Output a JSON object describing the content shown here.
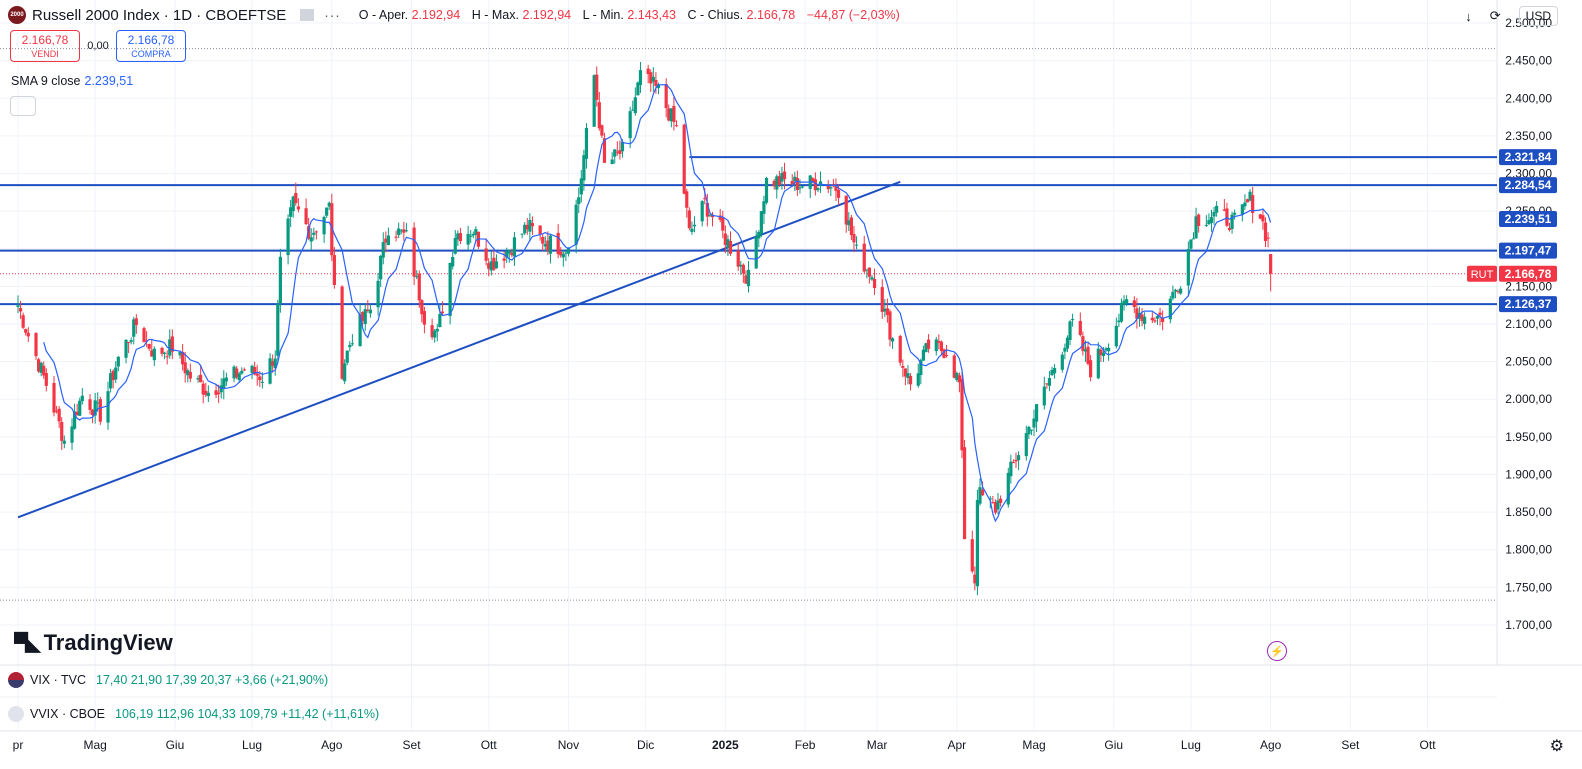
{
  "header": {
    "logo_text": "2000",
    "symbol": "Russell 2000 Index · 1D · CBOEFTSE",
    "open_label": "O - Aper.",
    "open_value": "2.192,94",
    "high_label": "H - Max.",
    "high_value": "2.192,94",
    "low_label": "L - Min.",
    "low_value": "2.143,43",
    "close_label": "C - Chius.",
    "close_value": "2.166,78",
    "change": "−44,87 (−2,03%)"
  },
  "trade": {
    "sell_price": "2.166,78",
    "sell_label": "VENDI",
    "spread": "0,00",
    "buy_price": "2.166,78",
    "buy_label": "COMPRA"
  },
  "indicator": {
    "name": "SMA 9 close",
    "value": "2.239,51"
  },
  "toolbar": {
    "currency": "USD"
  },
  "brand": "TradingView",
  "lower_panes": [
    {
      "name": "VIX · TVC",
      "values": "17,40  21,90  17,39  20,37  +3,66 (+21,90%)"
    },
    {
      "name": "VVIX · CBOE",
      "values": "106,19  112,96  104,33  109,79  +11,42 (+11,61%)"
    }
  ],
  "colors": {
    "up": "#089981",
    "down": "#f23645",
    "sma": "#2962ff",
    "levels": "#1e4fc2",
    "accent": "#2962ff"
  },
  "chart_data": {
    "type": "candlestick",
    "symbol": "RUT",
    "interval": "1D",
    "ylim": [
      1680,
      2520
    ],
    "y_ticks": [
      1700,
      1750,
      1800,
      1850,
      1900,
      1950,
      2000,
      2050,
      2100,
      2150,
      2200,
      2250,
      2300,
      2350,
      2400,
      2450,
      2500
    ],
    "y_tick_labels": [
      "1.700,00",
      "1.750,00",
      "1.800,00",
      "1.850,00",
      "1.900,00",
      "1.950,00",
      "2.000,00",
      "2.050,00",
      "2.100,00",
      "2.150,00",
      "2.200,00",
      "2.250,00",
      "2.300,00",
      "2.350,00",
      "2.400,00",
      "2.450,00",
      "2.500,00"
    ],
    "x_labels": [
      "pr",
      "Mag",
      "Giu",
      "Lug",
      "Ago",
      "Set",
      "Ott",
      "Nov",
      "Dic",
      "2025",
      "Feb",
      "Mar",
      "Apr",
      "Mag",
      "Giu",
      "Lug",
      "Ago",
      "Set",
      "Ott"
    ],
    "x_label_months": [
      "2024-04",
      "2024-05",
      "2024-06",
      "2024-07",
      "2024-08",
      "2024-09",
      "2024-10",
      "2024-11",
      "2024-12",
      "2025-01",
      "2025-02",
      "2025-03",
      "2025-04",
      "2025-05",
      "2025-06",
      "2025-07",
      "2025-08",
      "2025-09",
      "2025-10"
    ],
    "horizontal_levels": [
      {
        "value": 2321.84,
        "label": "2.321,84",
        "from_date": "2024-12-18"
      },
      {
        "value": 2284.54,
        "label": "2.284,54"
      },
      {
        "value": 2239.51,
        "label": "2.239,51",
        "kind": "sma"
      },
      {
        "value": 2197.47,
        "label": "2.197,47"
      },
      {
        "value": 2166.78,
        "label": "2.166,78",
        "kind": "last",
        "tag": "RUT"
      },
      {
        "value": 2126.37,
        "label": "2.126,37"
      }
    ],
    "dotted_levels": [
      2466,
      1733
    ],
    "trendline": {
      "from": [
        "2024-04-01",
        1843
      ],
      "to": [
        "2025-03-10",
        2289
      ]
    },
    "anchors": [
      [
        "2024-04-01",
        2125
      ],
      [
        "2024-04-05",
        2085
      ],
      [
        "2024-04-12",
        2020
      ],
      [
        "2024-04-19",
        1945
      ],
      [
        "2024-04-26",
        2005
      ],
      [
        "2024-05-03",
        1980
      ],
      [
        "2024-05-10",
        2055
      ],
      [
        "2024-05-17",
        2100
      ],
      [
        "2024-05-24",
        2060
      ],
      [
        "2024-05-31",
        2070
      ],
      [
        "2024-06-07",
        2030
      ],
      [
        "2024-06-14",
        2010
      ],
      [
        "2024-06-21",
        2025
      ],
      [
        "2024-06-28",
        2040
      ],
      [
        "2024-07-05",
        2030
      ],
      [
        "2024-07-10",
        2060
      ],
      [
        "2024-07-12",
        2180
      ],
      [
        "2024-07-17",
        2260
      ],
      [
        "2024-07-24",
        2220
      ],
      [
        "2024-07-31",
        2255
      ],
      [
        "2024-08-02",
        2140
      ],
      [
        "2024-08-05",
        2040
      ],
      [
        "2024-08-09",
        2085
      ],
      [
        "2024-08-16",
        2120
      ],
      [
        "2024-08-23",
        2230
      ],
      [
        "2024-08-30",
        2215
      ],
      [
        "2024-09-06",
        2110
      ],
      [
        "2024-09-11",
        2085
      ],
      [
        "2024-09-18",
        2220
      ],
      [
        "2024-09-25",
        2225
      ],
      [
        "2024-10-02",
        2180
      ],
      [
        "2024-10-09",
        2200
      ],
      [
        "2024-10-16",
        2230
      ],
      [
        "2024-10-23",
        2210
      ],
      [
        "2024-10-31",
        2200
      ],
      [
        "2024-11-05",
        2270
      ],
      [
        "2024-11-11",
        2430
      ],
      [
        "2024-11-15",
        2310
      ],
      [
        "2024-11-22",
        2330
      ],
      [
        "2024-11-29",
        2430
      ],
      [
        "2024-12-06",
        2410
      ],
      [
        "2024-12-13",
        2360
      ],
      [
        "2024-12-18",
        2220
      ],
      [
        "2024-12-24",
        2260
      ],
      [
        "2024-12-31",
        2220
      ],
      [
        "2025-01-10",
        2160
      ],
      [
        "2025-01-17",
        2290
      ],
      [
        "2025-01-24",
        2290
      ],
      [
        "2025-01-31",
        2285
      ],
      [
        "2025-02-07",
        2290
      ],
      [
        "2025-02-14",
        2280
      ],
      [
        "2025-02-21",
        2195
      ],
      [
        "2025-02-28",
        2160
      ],
      [
        "2025-03-07",
        2080
      ],
      [
        "2025-03-14",
        2020
      ],
      [
        "2025-03-21",
        2070
      ],
      [
        "2025-03-28",
        2065
      ],
      [
        "2025-04-02",
        2020
      ],
      [
        "2025-04-04",
        1820
      ],
      [
        "2025-04-08",
        1760
      ],
      [
        "2025-04-09",
        1875
      ],
      [
        "2025-04-16",
        1855
      ],
      [
        "2025-04-25",
        1930
      ],
      [
        "2025-05-02",
        1985
      ],
      [
        "2025-05-12",
        2070
      ],
      [
        "2025-05-16",
        2100
      ],
      [
        "2025-05-23",
        2040
      ],
      [
        "2025-05-30",
        2080
      ],
      [
        "2025-06-06",
        2130
      ],
      [
        "2025-06-13",
        2110
      ],
      [
        "2025-06-20",
        2110
      ],
      [
        "2025-06-27",
        2160
      ],
      [
        "2025-07-03",
        2240
      ],
      [
        "2025-07-11",
        2245
      ],
      [
        "2025-07-18",
        2235
      ],
      [
        "2025-07-24",
        2265
      ],
      [
        "2025-07-28",
        2245
      ],
      [
        "2025-07-31",
        2210
      ],
      [
        "2025-08-01",
        2166.78
      ]
    ],
    "last_bar": {
      "date": "2025-08-01",
      "open": 2192.94,
      "high": 2192.94,
      "low": 2143.43,
      "close": 2166.78
    },
    "sma": {
      "period": 9,
      "source": "close",
      "last": 2239.51
    }
  }
}
